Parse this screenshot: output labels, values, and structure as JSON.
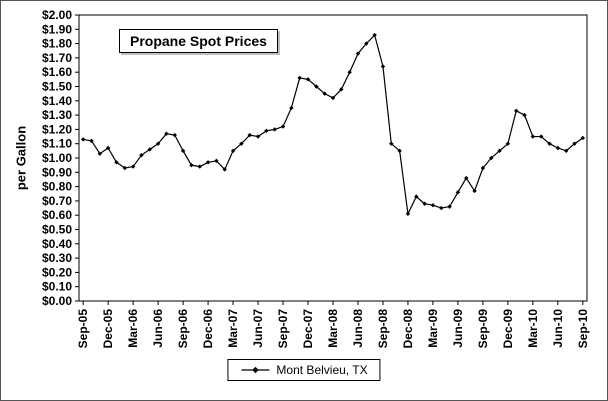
{
  "chart_data": {
    "type": "line",
    "title": "Propane Spot Prices",
    "xlabel": "",
    "ylabel": "per Gallon",
    "ylim": [
      0.0,
      2.0
    ],
    "ytick_step": 0.1,
    "ytick_prefix": "$",
    "grid": false,
    "legend_position": "bottom",
    "x_label_every": 3,
    "categories": [
      "Sep-05",
      "Oct-05",
      "Nov-05",
      "Dec-05",
      "Jan-06",
      "Feb-06",
      "Mar-06",
      "Apr-06",
      "May-06",
      "Jun-06",
      "Jul-06",
      "Aug-06",
      "Sep-06",
      "Oct-06",
      "Nov-06",
      "Dec-06",
      "Jan-07",
      "Feb-07",
      "Mar-07",
      "Apr-07",
      "May-07",
      "Jun-07",
      "Jul-07",
      "Aug-07",
      "Sep-07",
      "Oct-07",
      "Nov-07",
      "Dec-07",
      "Jan-08",
      "Feb-08",
      "Mar-08",
      "Apr-08",
      "May-08",
      "Jun-08",
      "Jul-08",
      "Aug-08",
      "Sep-08",
      "Oct-08",
      "Nov-08",
      "Dec-08",
      "Jan-09",
      "Feb-09",
      "Mar-09",
      "Apr-09",
      "May-09",
      "Jun-09",
      "Jul-09",
      "Aug-09",
      "Sep-09",
      "Oct-09",
      "Nov-09",
      "Dec-09",
      "Jan-10",
      "Feb-10",
      "Mar-10",
      "Apr-10",
      "May-10",
      "Jun-10",
      "Jul-10",
      "Aug-10",
      "Sep-10"
    ],
    "shown_x_tick_labels": [
      "Sep-05",
      "Dec-05",
      "Mar-06",
      "Jun-06",
      "Sep-06",
      "Dec-06",
      "Mar-07",
      "Jun-07",
      "Sep-07",
      "Dec-07",
      "Mar-08",
      "Jun-08",
      "Sep-08",
      "Dec-08",
      "Mar-09",
      "Jun-09",
      "Sep-09",
      "Dec-09",
      "Mar-10",
      "Jun-10",
      "Sep-10"
    ],
    "series": [
      {
        "name": "Mont Belvieu, TX",
        "color": "#000000",
        "marker": "diamond",
        "values": [
          1.13,
          1.12,
          1.03,
          1.07,
          0.97,
          0.93,
          0.94,
          1.02,
          1.06,
          1.1,
          1.17,
          1.16,
          1.05,
          0.95,
          0.94,
          0.97,
          0.98,
          0.92,
          1.05,
          1.1,
          1.16,
          1.15,
          1.19,
          1.2,
          1.22,
          1.35,
          1.56,
          1.55,
          1.5,
          1.45,
          1.42,
          1.48,
          1.6,
          1.73,
          1.8,
          1.86,
          1.64,
          1.1,
          1.05,
          0.61,
          0.73,
          0.68,
          0.67,
          0.65,
          0.66,
          0.76,
          0.86,
          0.77,
          0.93,
          1.0,
          1.05,
          1.1,
          1.33,
          1.3,
          1.15,
          1.15,
          1.1,
          1.07,
          1.05,
          1.1,
          1.14
        ]
      }
    ]
  },
  "colors": {
    "line": "#000000",
    "plot_border": "#000000",
    "background": "#ffffff",
    "text": "#000000"
  }
}
